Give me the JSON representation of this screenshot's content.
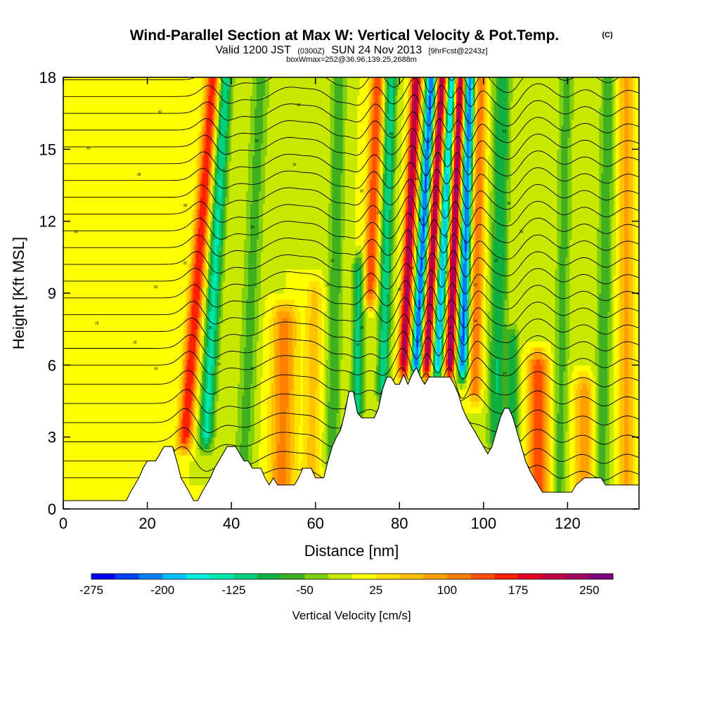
{
  "chart_data": {
    "type": "heatmap",
    "title": "Wind-Parallel Section at Max W: Vertical Velocity & Pot.Temp.",
    "title_mark": "(C)",
    "subtitle": {
      "valid": "Valid 1200 JST",
      "zulu": "(0300Z)",
      "date": "SUN 24 Nov 2013",
      "forecast": "[9hrFcst@2243z]"
    },
    "box_info": "boxWmax=252@36.96,139.25,2688m",
    "xlabel": "Distance [nm]",
    "ylabel": "Height [Kft MSL]",
    "xlim": [
      0,
      137
    ],
    "ylim": [
      0,
      18
    ],
    "x_ticks": [
      0,
      20,
      40,
      60,
      80,
      100,
      120
    ],
    "x_tick_labels": [
      "0",
      "20",
      "40",
      "60",
      "80",
      "100",
      "120"
    ],
    "y_ticks": [
      0,
      3,
      6,
      9,
      12,
      15,
      18
    ],
    "y_tick_labels": [
      "0",
      "3",
      "6",
      "9",
      "12",
      "15",
      "18"
    ],
    "colorbar": {
      "title": "Vertical Velocity [cm/s]",
      "min": -275,
      "max": 275,
      "step": 25,
      "tick_values": [
        -275,
        -200,
        -125,
        -50,
        25,
        100,
        175,
        250
      ],
      "tick_labels": [
        "-275",
        "-200",
        "-125",
        "-50",
        "25",
        "100",
        "175",
        "250"
      ],
      "colors": [
        "#0000ff",
        "#0040ff",
        "#0080ff",
        "#00c0ff",
        "#00f0e0",
        "#00e8b0",
        "#00d080",
        "#10b040",
        "#40b020",
        "#80d010",
        "#c8e800",
        "#ffff00",
        "#ffe000",
        "#ffc000",
        "#ffa000",
        "#ff8000",
        "#ff5000",
        "#ff2000",
        "#e00020",
        "#c00040",
        "#a00060",
        "#800080"
      ]
    },
    "background_value": 0,
    "terrain": [
      [
        0,
        0.35
      ],
      [
        15,
        0.35
      ],
      [
        16,
        0.7
      ],
      [
        17,
        1.0
      ],
      [
        18,
        1.3
      ],
      [
        19,
        1.7
      ],
      [
        20,
        2.0
      ],
      [
        22,
        2.0
      ],
      [
        23,
        2.3
      ],
      [
        24,
        2.6
      ],
      [
        26,
        2.6
      ],
      [
        27,
        2.0
      ],
      [
        28,
        1.3
      ],
      [
        29,
        1.0
      ],
      [
        30,
        0.7
      ],
      [
        31,
        0.35
      ],
      [
        32,
        0.35
      ],
      [
        33,
        0.7
      ],
      [
        34,
        1.0
      ],
      [
        35,
        1.3
      ],
      [
        36,
        1.7
      ],
      [
        37,
        2.0
      ],
      [
        38,
        2.3
      ],
      [
        39,
        2.6
      ],
      [
        41,
        2.6
      ],
      [
        42,
        2.3
      ],
      [
        43,
        2.0
      ],
      [
        44,
        2.0
      ],
      [
        45,
        1.7
      ],
      [
        47,
        1.7
      ],
      [
        48,
        1.3
      ],
      [
        49,
        1.0
      ],
      [
        50,
        1.3
      ],
      [
        51,
        1.0
      ],
      [
        55,
        1.0
      ],
      [
        56,
        1.3
      ],
      [
        57,
        1.7
      ],
      [
        59,
        1.7
      ],
      [
        60,
        1.3
      ],
      [
        62,
        1.3
      ],
      [
        63,
        2.0
      ],
      [
        64,
        2.6
      ],
      [
        65,
        3.0
      ],
      [
        66,
        3.3
      ],
      [
        67,
        4.0
      ],
      [
        68,
        4.9
      ],
      [
        69,
        4.9
      ],
      [
        70,
        4.0
      ],
      [
        71,
        3.8
      ],
      [
        74,
        3.8
      ],
      [
        75,
        4.2
      ],
      [
        76,
        5.0
      ],
      [
        77,
        5.5
      ],
      [
        78,
        5.5
      ],
      [
        79,
        5.2
      ],
      [
        80,
        5.2
      ],
      [
        81,
        5.6
      ],
      [
        82,
        5.2
      ],
      [
        83,
        5.6
      ],
      [
        84,
        5.9
      ],
      [
        85,
        5.5
      ],
      [
        86,
        5.2
      ],
      [
        87,
        5.5
      ],
      [
        92,
        5.5
      ],
      [
        93,
        5.2
      ],
      [
        94,
        4.8
      ],
      [
        95,
        4.2
      ],
      [
        96,
        3.8
      ],
      [
        97,
        3.5
      ],
      [
        98,
        3.2
      ],
      [
        99,
        2.9
      ],
      [
        100,
        2.6
      ],
      [
        101,
        2.3
      ],
      [
        102,
        2.6
      ],
      [
        103,
        3.2
      ],
      [
        104,
        3.8
      ],
      [
        105,
        4.2
      ],
      [
        106,
        4.2
      ],
      [
        107,
        3.8
      ],
      [
        108,
        3.2
      ],
      [
        109,
        2.6
      ],
      [
        110,
        2.0
      ],
      [
        111,
        1.6
      ],
      [
        112,
        1.3
      ],
      [
        113,
        1.0
      ],
      [
        114,
        0.7
      ],
      [
        121,
        0.7
      ],
      [
        122,
        1.0
      ],
      [
        124,
        1.3
      ],
      [
        128,
        1.3
      ],
      [
        129,
        1.0
      ],
      [
        137,
        1.0
      ]
    ],
    "velocity_features": [
      {
        "x": 29,
        "width": 1.8,
        "amplitude": 175,
        "z_bottom": 3,
        "z_top": 18,
        "slope": 0.45
      },
      {
        "x": 34,
        "width": 1.8,
        "amplitude": -130,
        "z_bottom": 3,
        "z_top": 18,
        "slope": 0.3
      },
      {
        "x": 43,
        "width": 2.2,
        "amplitude": -60,
        "z_bottom": 2,
        "z_top": 18,
        "slope": 0.25
      },
      {
        "x": 52,
        "width": 3.0,
        "amplitude": 110,
        "z_bottom": 1,
        "z_top": 8,
        "slope": 0.1
      },
      {
        "x": 59,
        "width": 2.0,
        "amplitude": 60,
        "z_bottom": 1,
        "z_top": 9,
        "slope": 0.1
      },
      {
        "x": 64,
        "width": 1.8,
        "amplitude": -70,
        "z_bottom": 2,
        "z_top": 18,
        "slope": 0.1
      },
      {
        "x": 70,
        "width": 1.5,
        "amplitude": -110,
        "z_bottom": 4,
        "z_top": 10,
        "slope": 0.05
      },
      {
        "x": 73,
        "width": 1.6,
        "amplitude": 150,
        "z_bottom": 9,
        "z_top": 18,
        "slope": 0.2
      },
      {
        "x": 76,
        "width": 1.5,
        "amplitude": -120,
        "z_bottom": 5,
        "z_top": 18,
        "slope": 0.15
      },
      {
        "x": 81,
        "width": 1.3,
        "amplitude": 230,
        "z_bottom": 6,
        "z_top": 18,
        "slope": 0.25
      },
      {
        "x": 84,
        "width": 1.2,
        "amplitude": -230,
        "z_bottom": 6,
        "z_top": 18,
        "slope": 0.3
      },
      {
        "x": 86.5,
        "width": 1.2,
        "amplitude": 240,
        "z_bottom": 6,
        "z_top": 18,
        "slope": 0.3
      },
      {
        "x": 89,
        "width": 1.2,
        "amplitude": -190,
        "z_bottom": 6,
        "z_top": 18,
        "slope": 0.3
      },
      {
        "x": 92,
        "width": 1.2,
        "amplitude": 250,
        "z_bottom": 6,
        "z_top": 18,
        "slope": 0.2
      },
      {
        "x": 95,
        "width": 1.2,
        "amplitude": -230,
        "z_bottom": 6,
        "z_top": 18,
        "slope": 0.15
      },
      {
        "x": 98,
        "width": 1.5,
        "amplitude": 120,
        "z_bottom": 5,
        "z_top": 18,
        "slope": 0.1
      },
      {
        "x": 103,
        "width": 2.0,
        "amplitude": -100,
        "z_bottom": 3,
        "z_top": 18,
        "slope": 0.1
      },
      {
        "x": 107,
        "width": 1.5,
        "amplitude": -90,
        "z_bottom": 2,
        "z_top": 7,
        "slope": 0.0
      },
      {
        "x": 113,
        "width": 2.5,
        "amplitude": 150,
        "z_bottom": 0.7,
        "z_top": 6,
        "slope": 0.0
      },
      {
        "x": 118,
        "width": 1.8,
        "amplitude": -60,
        "z_bottom": 0.7,
        "z_top": 18,
        "slope": 0.1
      },
      {
        "x": 124,
        "width": 2.5,
        "amplitude": 90,
        "z_bottom": 1,
        "z_top": 5,
        "slope": 0.0
      },
      {
        "x": 128,
        "width": 1.8,
        "amplitude": -70,
        "z_bottom": 1,
        "z_top": 18,
        "slope": 0.1
      },
      {
        "x": 134,
        "width": 2.0,
        "amplitude": 80,
        "z_bottom": 1,
        "z_top": 18,
        "slope": 0.0
      }
    ],
    "isentrope_heights": [
      1.3,
      2.0,
      2.8,
      3.6,
      4.4,
      5.2,
      6.0,
      6.7,
      7.4,
      8.1,
      8.8,
      9.5,
      10.2,
      10.9,
      11.6,
      12.3,
      13.0,
      13.7,
      14.4,
      15.1,
      15.8,
      16.5,
      17.2,
      17.9
    ],
    "contour_labels": [
      {
        "x": 6,
        "z": 15.0,
        "text": "40"
      },
      {
        "x": 3,
        "z": 11.5,
        "text": "34"
      },
      {
        "x": 18,
        "z": 13.9,
        "text": "38"
      },
      {
        "x": 23,
        "z": 16.5,
        "text": "42"
      },
      {
        "x": 29,
        "z": 12.6,
        "text": "38"
      },
      {
        "x": 29,
        "z": 10.2,
        "text": "32"
      },
      {
        "x": 22,
        "z": 9.2,
        "text": "30"
      },
      {
        "x": 8,
        "z": 7.7,
        "text": "18"
      },
      {
        "x": 17,
        "z": 6.9,
        "text": "18"
      },
      {
        "x": 22,
        "z": 5.8,
        "text": "14"
      },
      {
        "x": 35,
        "z": 7.5,
        "text": "26"
      },
      {
        "x": 37,
        "z": 6.0,
        "text": "18"
      },
      {
        "x": 45,
        "z": 5.8,
        "text": "10"
      },
      {
        "x": 45,
        "z": 11.7,
        "text": "36"
      },
      {
        "x": 46,
        "z": 15.3,
        "text": "38"
      },
      {
        "x": 56,
        "z": 16.8,
        "text": "38"
      },
      {
        "x": 55,
        "z": 14.3,
        "text": "36"
      },
      {
        "x": 64,
        "z": 10.3,
        "text": "36"
      },
      {
        "x": 63,
        "z": 9.3,
        "text": "30"
      },
      {
        "x": 71,
        "z": 13.2,
        "text": "38"
      },
      {
        "x": 75,
        "z": 12.3,
        "text": "34"
      },
      {
        "x": 71,
        "z": 7.5,
        "text": "18"
      },
      {
        "x": 70,
        "z": 6.8,
        "text": "14"
      },
      {
        "x": 78,
        "z": 15.6,
        "text": "42"
      },
      {
        "x": 80,
        "z": 9.1,
        "text": "18"
      },
      {
        "x": 83,
        "z": 10.0,
        "text": "26"
      },
      {
        "x": 84,
        "z": 13.7,
        "text": "34"
      },
      {
        "x": 85,
        "z": 12.0,
        "text": "30"
      },
      {
        "x": 86,
        "z": 9.4,
        "text": "18"
      },
      {
        "x": 91,
        "z": 11.3,
        "text": "34"
      },
      {
        "x": 91,
        "z": 9.8,
        "text": "26"
      },
      {
        "x": 92,
        "z": 7.5,
        "text": "18"
      },
      {
        "x": 98,
        "z": 9.3,
        "text": "22"
      },
      {
        "x": 98,
        "z": 7.8,
        "text": "14"
      },
      {
        "x": 103,
        "z": 10.3,
        "text": "30"
      },
      {
        "x": 105,
        "z": 15.7,
        "text": "42"
      },
      {
        "x": 106,
        "z": 12.7,
        "text": "38"
      },
      {
        "x": 109,
        "z": 11.5,
        "text": "36"
      },
      {
        "x": 105,
        "z": 5.6,
        "text": "14"
      }
    ]
  }
}
